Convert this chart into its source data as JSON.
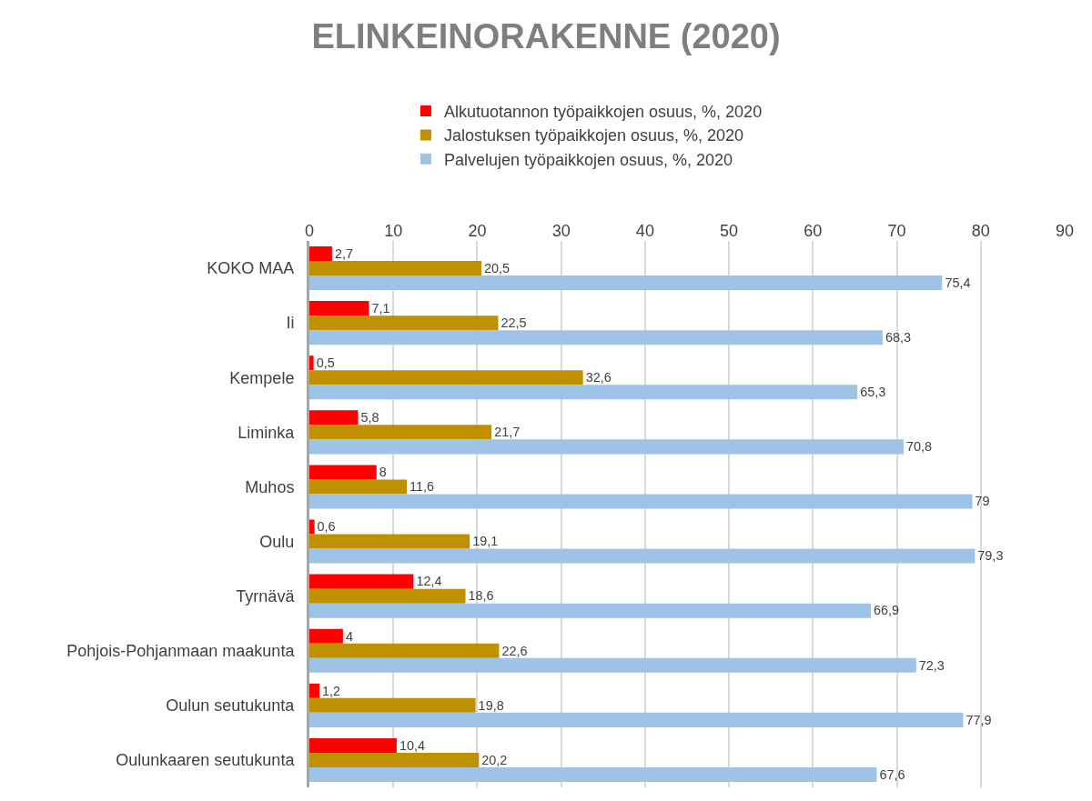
{
  "chart_data": {
    "type": "bar",
    "orientation": "horizontal",
    "title": "ELINKEINORAKENNE (2020)",
    "categories": [
      "KOKO MAA",
      "Ii",
      "Kempele",
      "Liminka",
      "Muhos",
      "Oulu",
      "Tyrnävä",
      "Pohjois-Pohjanmaan maakunta",
      "Oulun seutukunta",
      "Oulunkaaren seutukunta"
    ],
    "series": [
      {
        "name": "Alkutuotannon työpaikkojen osuus, %, 2020",
        "color": "#ff0000",
        "values": [
          2.7,
          7.1,
          0.5,
          5.8,
          8,
          0.6,
          12.4,
          4,
          1.2,
          10.4
        ],
        "value_labels": [
          "2,7",
          "7,1",
          "0,5",
          "5,8",
          "8",
          "0,6",
          "12,4",
          "4",
          "1,2",
          "10,4"
        ]
      },
      {
        "name": "Jalostuksen työpaikkojen osuus, %, 2020",
        "color": "#bf9000",
        "values": [
          20.5,
          22.5,
          32.6,
          21.7,
          11.6,
          19.1,
          18.6,
          22.6,
          19.8,
          20.2
        ],
        "value_labels": [
          "20,5",
          "22,5",
          "32,6",
          "21,7",
          "11,6",
          "19,1",
          "18,6",
          "22,6",
          "19,8",
          "20,2"
        ]
      },
      {
        "name": "Palvelujen työpaikkojen osuus, %, 2020",
        "color": "#9dc3e6",
        "values": [
          75.4,
          68.3,
          65.3,
          70.8,
          79,
          79.3,
          66.9,
          72.3,
          77.9,
          67.6
        ],
        "value_labels": [
          "75,4",
          "68,3",
          "65,3",
          "70,8",
          "79",
          "79,3",
          "66,9",
          "72,3",
          "77,9",
          "67,6"
        ]
      }
    ],
    "xlim": [
      0,
      90
    ],
    "xticks": [
      0,
      10,
      20,
      30,
      40,
      50,
      60,
      70,
      80,
      90
    ],
    "grid": "x",
    "legend": "top"
  }
}
